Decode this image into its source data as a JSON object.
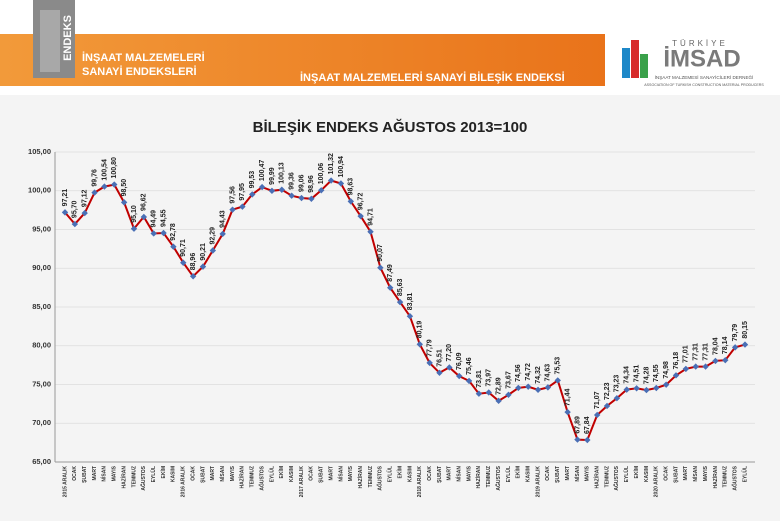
{
  "header": {
    "logo": "ENDEKS",
    "title_line1": "İNŞAAT MALZEMELERİ",
    "title_line2": "SANAYİ ENDEKSLERİ",
    "subtitle": "İNŞAAT MALZEMELERİ SANAYİ BİLEŞİK ENDEKSİ",
    "brand_top": "TÜRKİYE",
    "brand": "İMSAD",
    "brand_line1": "İNŞAAT MALZEMESİ SANAYİCİLERİ DERNEĞİ",
    "brand_line2": "ASSOCIATION OF TURKISH CONSTRUCTION MATERIAL PRODUCERS"
  },
  "chart_data": {
    "type": "line",
    "title": "BİLEŞİK ENDEKS AĞUSTOS 2013=100",
    "categories": [
      "2015 ARALIK",
      "OCAK",
      "ŞUBAT",
      "MART",
      "NİSAN",
      "MAYIS",
      "HAZİRAN",
      "TEMMUZ",
      "AĞUSTOS",
      "EYLÜL",
      "EKİM",
      "KASIM",
      "2016 ARALIK",
      "OCAK",
      "ŞUBAT",
      "MART",
      "NİSAN",
      "MAYIS",
      "HAZİRAN",
      "TEMMUZ",
      "AĞUSTOS",
      "EYLÜL",
      "EKİM",
      "KASIM",
      "2017 ARALIK",
      "OCAK",
      "ŞUBAT",
      "MART",
      "NİSAN",
      "MAYIS",
      "HAZİRAN",
      "TEMMUZ",
      "AĞUSTOS",
      "EYLÜL",
      "EKİM",
      "KASIM",
      "2018 ARALIK",
      "OCAK",
      "ŞUBAT",
      "MART",
      "NİSAN",
      "MAYIS",
      "HAZİRAN",
      "TEMMUZ",
      "AĞUSTOS",
      "EYLÜL",
      "EKİM",
      "KASIM",
      "2019 ARALIK",
      "OCAK",
      "ŞUBAT",
      "MART",
      "NİSAN",
      "MAYIS",
      "HAZİRAN",
      "TEMMUZ",
      "AĞUSTOS",
      "EYLÜL",
      "EKİM",
      "KASIM",
      "2020 ARALIK",
      "OCAK",
      "ŞUBAT",
      "MART",
      "NİSAN",
      "MAYIS",
      "HAZİRAN",
      "TEMMUZ",
      "AĞUSTOS",
      "EYLÜL"
    ],
    "values": [
      97.21,
      95.7,
      97.12,
      99.76,
      100.54,
      100.8,
      98.5,
      95.1,
      96.62,
      94.49,
      94.55,
      92.78,
      90.71,
      88.96,
      90.21,
      92.29,
      94.43,
      97.56,
      97.95,
      99.53,
      100.47,
      99.99,
      100.13,
      99.36,
      99.06,
      98.96,
      100.06,
      101.32,
      100.94,
      98.63,
      96.72,
      94.71,
      90.07,
      87.49,
      85.63,
      83.81,
      80.19,
      77.79,
      76.51,
      77.2,
      76.09,
      75.46,
      73.81,
      73.97,
      72.89,
      73.67,
      74.56,
      74.72,
      74.32,
      74.63,
      75.53,
      71.44,
      67.89,
      67.84,
      71.07,
      72.23,
      73.23,
      74.34,
      74.51,
      74.28,
      74.55,
      74.98,
      76.18,
      77.01,
      77.31,
      77.31,
      78.04,
      78.14,
      79.79,
      80.15
    ],
    "value_labels": [
      "97,21",
      "95,70",
      "97,12",
      "99,76",
      "100,54",
      "100,80",
      "98,50",
      "95,10",
      "96,62",
      "94,49",
      "94,55",
      "92,78",
      "90,71",
      "88,96",
      "90,21",
      "92,29",
      "94,43",
      "97,56",
      "97,95",
      "99,53",
      "100,47",
      "99,99",
      "100,13",
      "99,36",
      "99,06",
      "98,96",
      "100,06",
      "101,32",
      "100,94",
      "98,63",
      "96,72",
      "94,71",
      "90,07",
      "87,49",
      "85,63",
      "83,81",
      "80,19",
      "77,79",
      "76,51",
      "77,20",
      "76,09",
      "75,46",
      "73,81",
      "73,97",
      "72,89",
      "73,67",
      "74,56",
      "74,72",
      "74,32",
      "74,63",
      "75,53",
      "71,44",
      "67,89",
      "67,84",
      "71,07",
      "72,23",
      "73,23",
      "74,34",
      "74,51",
      "74,28",
      "74,55",
      "74,98",
      "76,18",
      "77,01",
      "77,31",
      "77,31",
      "78,04",
      "78,14",
      "79,79",
      "80,15"
    ],
    "color": "#c00000",
    "marker_color": "#4a6fb5",
    "ylim": [
      65,
      105
    ],
    "yticks": [
      {
        "value": 65,
        "label": "65,00"
      },
      {
        "value": 70,
        "label": "70,00"
      },
      {
        "value": 75,
        "label": "75,00"
      },
      {
        "value": 80,
        "label": "80,00"
      },
      {
        "value": 85,
        "label": "85,00"
      },
      {
        "value": 90,
        "label": "90,00"
      },
      {
        "value": 95,
        "label": "95,00"
      },
      {
        "value": 100,
        "label": "100,00"
      },
      {
        "value": 105,
        "label": "105,00"
      }
    ],
    "grid": true
  }
}
